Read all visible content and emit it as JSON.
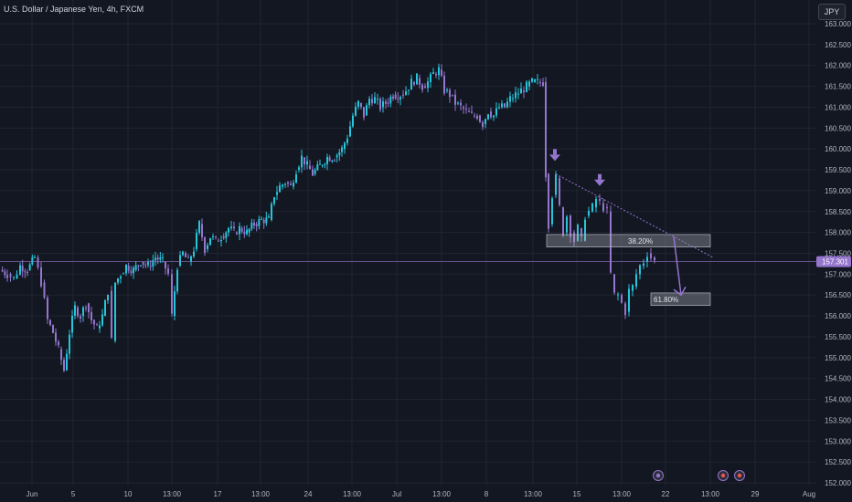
{
  "header": {
    "symbol_title": "U.S. Dollar / Japanese Yen, 4h, FXCM",
    "currency_button": "JPY"
  },
  "colors": {
    "background": "#131722",
    "up": "#26c6da",
    "down": "#9575cd",
    "annotation": "#9575cd",
    "fib_box": "#b2b5be",
    "grid": "#1f2430"
  },
  "chart_data": {
    "type": "candlestick",
    "ylim": [
      152.0,
      163.0
    ],
    "ytick_labels": [
      "163.000",
      "162.500",
      "162.000",
      "161.500",
      "161.000",
      "160.500",
      "160.000",
      "159.500",
      "159.000",
      "158.500",
      "158.000",
      "157.500",
      "157.000",
      "156.500",
      "156.000",
      "155.500",
      "155.000",
      "154.500",
      "154.000",
      "153.500",
      "153.000",
      "152.500",
      "152.000"
    ],
    "xtick_labels": [
      "Jun",
      "5",
      "10",
      "13:00",
      "17",
      "13:00",
      "24",
      "13:00",
      "Jul",
      "13:00",
      "8",
      "13:00",
      "15",
      "13:00",
      "22",
      "13:00",
      "29",
      "Aug"
    ],
    "current_price_label": "157.301",
    "current_price": 157.3,
    "path_points": [
      [
        0,
        157.1
      ],
      [
        8,
        157.0
      ],
      [
        15,
        156.9
      ],
      [
        22,
        157.2
      ],
      [
        30,
        157.1
      ],
      [
        38,
        157.4
      ],
      [
        45,
        156.8
      ],
      [
        52,
        155.9
      ],
      [
        58,
        155.6
      ],
      [
        64,
        155.2
      ],
      [
        70,
        154.7
      ],
      [
        76,
        155.6
      ],
      [
        82,
        156.2
      ],
      [
        88,
        156.0
      ],
      [
        94,
        156.3
      ],
      [
        100,
        155.9
      ],
      [
        106,
        155.7
      ],
      [
        112,
        156.0
      ],
      [
        118,
        156.6
      ],
      [
        122,
        155.4
      ],
      [
        126,
        156.8
      ],
      [
        132,
        157.0
      ],
      [
        138,
        157.2
      ],
      [
        146,
        157.1
      ],
      [
        154,
        157.3
      ],
      [
        162,
        157.2
      ],
      [
        170,
        157.4
      ],
      [
        178,
        157.3
      ],
      [
        184,
        157.0
      ],
      [
        188,
        156.0
      ],
      [
        194,
        157.2
      ],
      [
        200,
        157.5
      ],
      [
        206,
        157.3
      ],
      [
        212,
        157.6
      ],
      [
        218,
        158.2
      ],
      [
        224,
        157.6
      ],
      [
        230,
        157.9
      ],
      [
        236,
        157.8
      ],
      [
        242,
        157.9
      ],
      [
        250,
        158.1
      ],
      [
        256,
        158.0
      ],
      [
        262,
        158.1
      ],
      [
        270,
        158.0
      ],
      [
        278,
        158.2
      ],
      [
        286,
        158.3
      ],
      [
        294,
        158.3
      ],
      [
        300,
        158.9
      ],
      [
        306,
        159.1
      ],
      [
        312,
        159.2
      ],
      [
        318,
        159.1
      ],
      [
        324,
        159.5
      ],
      [
        330,
        159.8
      ],
      [
        336,
        159.6
      ],
      [
        342,
        159.4
      ],
      [
        350,
        159.6
      ],
      [
        358,
        159.8
      ],
      [
        366,
        159.8
      ],
      [
        374,
        160.0
      ],
      [
        380,
        160.3
      ],
      [
        386,
        160.8
      ],
      [
        392,
        161.1
      ],
      [
        398,
        160.8
      ],
      [
        404,
        161.2
      ],
      [
        410,
        161.2
      ],
      [
        416,
        161.0
      ],
      [
        422,
        161.1
      ],
      [
        430,
        161.3
      ],
      [
        438,
        161.3
      ],
      [
        444,
        161.4
      ],
      [
        450,
        161.6
      ],
      [
        456,
        161.7
      ],
      [
        462,
        161.5
      ],
      [
        468,
        161.6
      ],
      [
        474,
        161.8
      ],
      [
        480,
        161.9
      ],
      [
        486,
        161.4
      ],
      [
        492,
        161.3
      ],
      [
        498,
        161.1
      ],
      [
        504,
        161.0
      ],
      [
        510,
        160.9
      ],
      [
        516,
        160.8
      ],
      [
        522,
        160.8
      ],
      [
        528,
        160.6
      ],
      [
        534,
        160.9
      ],
      [
        540,
        160.8
      ],
      [
        546,
        161.0
      ],
      [
        552,
        161.0
      ],
      [
        558,
        161.2
      ],
      [
        564,
        161.3
      ],
      [
        570,
        161.4
      ],
      [
        576,
        161.5
      ],
      [
        582,
        161.6
      ],
      [
        588,
        161.6
      ],
      [
        594,
        161.6
      ],
      [
        597,
        159.4
      ],
      [
        600,
        158.2
      ],
      [
        604,
        158.9
      ],
      [
        608,
        159.3
      ],
      [
        612,
        158.6
      ],
      [
        616,
        158.0
      ],
      [
        620,
        158.4
      ],
      [
        624,
        158.0
      ],
      [
        628,
        157.8
      ],
      [
        632,
        158.1
      ],
      [
        636,
        157.8
      ],
      [
        640,
        158.4
      ],
      [
        644,
        158.5
      ],
      [
        648,
        158.6
      ],
      [
        652,
        158.8
      ],
      [
        656,
        158.7
      ],
      [
        660,
        158.6
      ],
      [
        664,
        158.5
      ],
      [
        668,
        157.0
      ],
      [
        672,
        156.5
      ],
      [
        676,
        156.5
      ],
      [
        680,
        156.3
      ],
      [
        684,
        156.1
      ],
      [
        688,
        156.6
      ],
      [
        692,
        156.7
      ],
      [
        696,
        157.0
      ],
      [
        700,
        157.2
      ],
      [
        704,
        157.3
      ],
      [
        708,
        157.5
      ],
      [
        712,
        157.4
      ],
      [
        716,
        157.3
      ]
    ],
    "annotations": {
      "fib_levels": [
        {
          "label": "38.20%",
          "price_top": 157.95,
          "price_bottom": 157.65
        },
        {
          "label": "61.80%",
          "price_top": 156.55,
          "price_bottom": 156.25
        }
      ],
      "trendline": [
        [
          608,
          159.4
        ],
        [
          780,
          157.4
        ]
      ],
      "forecast_arrow": [
        [
          737,
          157.9
        ],
        [
          745,
          156.5
        ]
      ],
      "pivot_arrows": [
        [
          607,
          159.8
        ],
        [
          656,
          159.2
        ]
      ]
    }
  }
}
